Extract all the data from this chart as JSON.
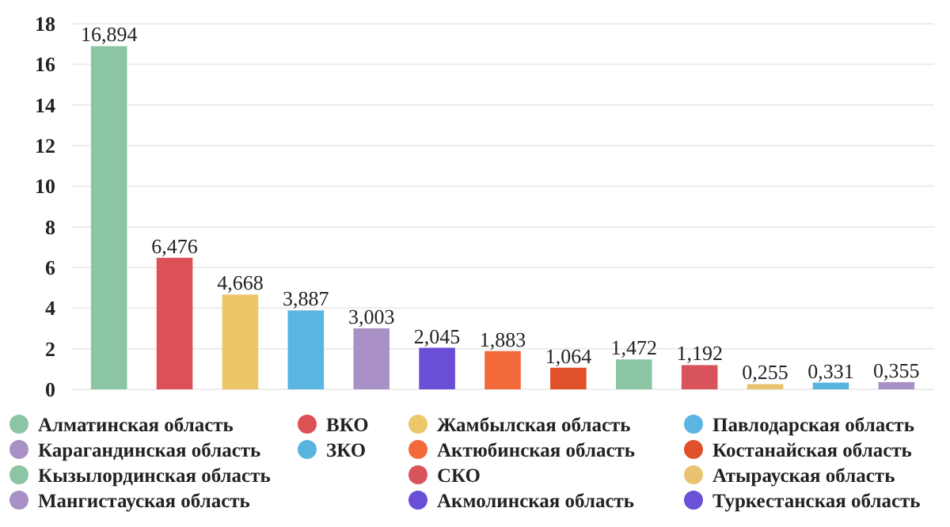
{
  "chart_data": {
    "type": "bar",
    "categories": [
      null,
      null,
      null,
      null,
      null,
      null,
      null,
      null,
      null,
      null,
      null,
      null,
      null
    ],
    "ylim": [
      0,
      18
    ],
    "yticks": [
      0,
      2,
      4,
      6,
      8,
      10,
      12,
      14,
      16,
      18
    ],
    "grid": "y",
    "legend": "bottom",
    "series": [
      {
        "name": "Алматинская область",
        "color": "#8cc5a3",
        "values": [
          16.894,
          null,
          null,
          null,
          null,
          null,
          null,
          null,
          null,
          null,
          null,
          null,
          null
        ],
        "value_labels": [
          "16,894",
          null,
          null,
          null,
          null,
          null,
          null,
          null,
          null,
          null,
          null,
          null,
          null
        ]
      },
      {
        "name": "Карагандинская область",
        "color": "#a991c6",
        "values": [
          null,
          null,
          null,
          null,
          3.003,
          null,
          null,
          null,
          null,
          null,
          null,
          null,
          null
        ],
        "value_labels": [
          null,
          null,
          null,
          null,
          "3,003",
          null,
          null,
          null,
          null,
          null,
          null,
          null,
          null
        ]
      },
      {
        "name": "Кызылординская область",
        "color": "#8cc5a3",
        "values": [
          null,
          null,
          null,
          null,
          null,
          null,
          null,
          null,
          1.472,
          null,
          null,
          null,
          null
        ],
        "value_labels": [
          null,
          null,
          null,
          null,
          null,
          null,
          null,
          null,
          "1,472",
          null,
          null,
          null,
          null
        ]
      },
      {
        "name": "Мангистауская область",
        "color": "#a991c6",
        "values": [
          null,
          null,
          null,
          null,
          null,
          null,
          null,
          null,
          null,
          null,
          null,
          null,
          0.355
        ],
        "value_labels": [
          null,
          null,
          null,
          null,
          null,
          null,
          null,
          null,
          null,
          null,
          null,
          null,
          "0,355"
        ]
      },
      {
        "name": "ВКО",
        "color": "#dc5156",
        "values": [
          null,
          6.476,
          null,
          null,
          null,
          null,
          null,
          null,
          null,
          null,
          null,
          null,
          null
        ],
        "value_labels": [
          null,
          "6,476",
          null,
          null,
          null,
          null,
          null,
          null,
          null,
          null,
          null,
          null,
          null
        ]
      },
      {
        "name": "ЗКО",
        "color": "#5ab4e0",
        "values": [
          null,
          null,
          null,
          null,
          null,
          null,
          null,
          null,
          null,
          null,
          null,
          0.331,
          null
        ],
        "value_labels": [
          null,
          null,
          null,
          null,
          null,
          null,
          null,
          null,
          null,
          null,
          null,
          "0,331",
          null
        ]
      },
      {
        "name": "Жамбылская область",
        "color": "#ecc76a",
        "values": [
          null,
          null,
          4.668,
          null,
          null,
          null,
          null,
          null,
          null,
          null,
          null,
          null,
          null
        ],
        "value_labels": [
          null,
          null,
          "4,668",
          null,
          null,
          null,
          null,
          null,
          null,
          null,
          null,
          null,
          null
        ]
      },
      {
        "name": "Актюбинская область",
        "color": "#f26a3a",
        "values": [
          null,
          null,
          null,
          null,
          null,
          null,
          1.883,
          null,
          null,
          null,
          null,
          null,
          null
        ],
        "value_labels": [
          null,
          null,
          null,
          null,
          null,
          null,
          "1,883",
          null,
          null,
          null,
          null,
          null,
          null
        ]
      },
      {
        "name": "СКО",
        "color": "#d9545a",
        "values": [
          null,
          null,
          null,
          null,
          null,
          null,
          null,
          null,
          null,
          1.192,
          null,
          null,
          null
        ],
        "value_labels": [
          null,
          null,
          null,
          null,
          null,
          null,
          null,
          null,
          null,
          "1,192",
          null,
          null,
          null
        ]
      },
      {
        "name": "Акмолинская область",
        "color": "#6a4fd6",
        "values": [
          null,
          null,
          null,
          null,
          null,
          2.045,
          null,
          null,
          null,
          null,
          null,
          null,
          null
        ],
        "value_labels": [
          null,
          null,
          null,
          null,
          null,
          "2,045",
          null,
          null,
          null,
          null,
          null,
          null,
          null
        ]
      },
      {
        "name": "Павлодарская область",
        "color": "#5bb5e2",
        "values": [
          null,
          null,
          null,
          3.887,
          null,
          null,
          null,
          null,
          null,
          null,
          null,
          null,
          null
        ],
        "value_labels": [
          null,
          null,
          null,
          "3,887",
          null,
          null,
          null,
          null,
          null,
          null,
          null,
          null,
          null
        ]
      },
      {
        "name": "Костанайская область",
        "color": "#e0502a",
        "values": [
          null,
          null,
          null,
          null,
          null,
          null,
          null,
          1.064,
          null,
          null,
          null,
          null,
          null
        ],
        "value_labels": [
          null,
          null,
          null,
          null,
          null,
          null,
          null,
          "1,064",
          null,
          null,
          null,
          null,
          null
        ]
      },
      {
        "name": "Атырауская область",
        "color": "#e8c470",
        "values": [
          null,
          null,
          null,
          null,
          null,
          null,
          null,
          null,
          null,
          null,
          0.255,
          null,
          null
        ],
        "value_labels": [
          null,
          null,
          null,
          null,
          null,
          null,
          null,
          null,
          null,
          null,
          "0,255",
          null,
          null
        ]
      },
      {
        "name": "Туркестанская область",
        "color": "#6b50d8",
        "values": [
          null,
          null,
          null,
          null,
          null,
          null,
          null,
          null,
          null,
          null,
          null,
          null,
          null
        ],
        "value_labels": [
          null,
          null,
          null,
          null,
          null,
          null,
          null,
          null,
          null,
          null,
          null,
          null,
          null
        ]
      }
    ]
  }
}
